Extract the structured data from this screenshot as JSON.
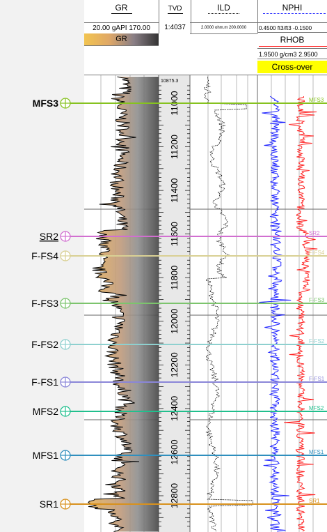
{
  "headers": {
    "gr": {
      "title": "GR",
      "scale_left": "20.00",
      "scale_unit": "gAPI",
      "scale_right": "170.00",
      "fill_label": "GR"
    },
    "tvd": {
      "title": "TVD",
      "scale": "1:4037"
    },
    "ild": {
      "title": "ILD",
      "scale_left": "2.0000",
      "scale_unit": "ohm.m",
      "scale_right": "200.0000"
    },
    "nphi": {
      "title": "NPHI",
      "scale_left": "0.4500",
      "scale_unit": "ft3/ft3",
      "scale_right": "-0.1500"
    },
    "rhob": {
      "title": "RHOB",
      "scale_left": "1.9500",
      "scale_unit": "g/cm3",
      "scale_right": "2.9500"
    },
    "crossover": {
      "label": "Cross-over"
    }
  },
  "depth": {
    "top_label": "10875.3",
    "ticks": [
      "11000",
      "11200",
      "11400",
      "11600",
      "11800",
      "12000",
      "12200",
      "12400",
      "12600",
      "12800"
    ]
  },
  "markers": [
    {
      "label": "MFS3",
      "color": "#86c21f",
      "bold": true
    },
    {
      "label": "SR2",
      "color": "#d16fd0",
      "underline": true
    },
    {
      "label": "F-FS4",
      "color": "#d9d094"
    },
    {
      "label": "F-FS3",
      "color": "#7cc46d"
    },
    {
      "label": "F-FS2",
      "color": "#8ed0cf"
    },
    {
      "label": "F-FS1",
      "color": "#8a86d8"
    },
    {
      "label": "MFS2",
      "color": "#21bf8d"
    },
    {
      "label": "MFS1",
      "color": "#2f8fbe"
    },
    {
      "label": "SR1",
      "color": "#d8911d"
    }
  ],
  "colors": {
    "gr_fill_left": "#e6b25a",
    "gr_fill_right": "#444444",
    "nphi": "#1f24ff",
    "rhob": "#ff2020",
    "crossover": "#ffff00"
  }
}
